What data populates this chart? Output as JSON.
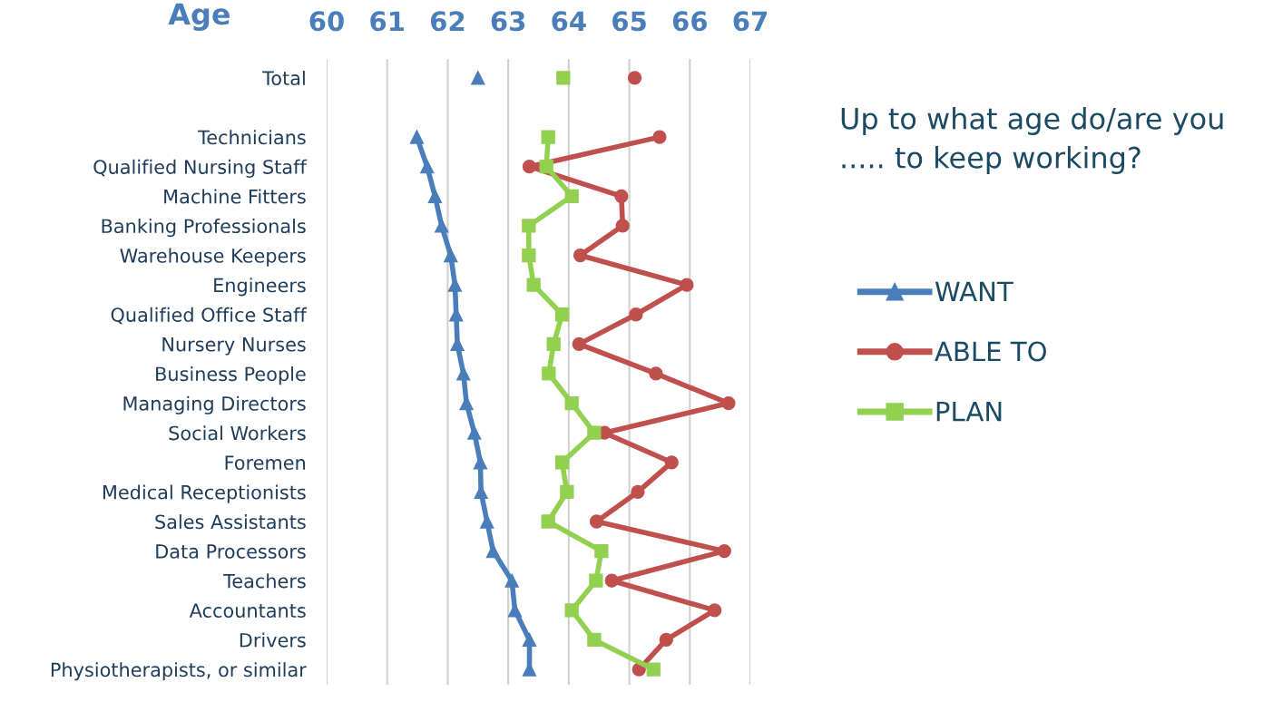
{
  "chart_data": {
    "type": "line",
    "orientation": "horizontal",
    "title": "Up to what age do/are you ..... to keep working?",
    "xlabel": "Age",
    "categories": [
      "Total",
      null,
      "Technicians",
      "Qualified Nursing Staff",
      "Machine Fitters",
      "Banking Professionals",
      "Warehouse Keepers",
      "Engineers",
      "Qualified Office Staff",
      "Nursery Nurses",
      "Business People",
      "Managing Directors",
      "Social Workers",
      "Foremen",
      "Medical Receptionists",
      "Sales Assistants",
      "Data Processors",
      "Teachers",
      "Accountants",
      "Drivers",
      "Physiotherapists, or similar"
    ],
    "xlim": [
      60,
      67
    ],
    "xticks": [
      60,
      61,
      62,
      63,
      64,
      65,
      66,
      67
    ],
    "grid": "x",
    "legend": "right",
    "series": [
      {
        "name": "WANT",
        "color": "#4a7ebb",
        "marker": "triangle",
        "values": [
          62.5,
          null,
          61.49,
          61.66,
          61.79,
          61.9,
          62.05,
          62.12,
          62.14,
          62.16,
          62.26,
          62.31,
          62.44,
          62.54,
          62.55,
          62.65,
          62.75,
          63.06,
          63.11,
          63.35,
          63.35
        ]
      },
      {
        "name": "ABLE TO",
        "color": "#c0504d",
        "marker": "circle",
        "values": [
          65.09,
          null,
          65.5,
          63.35,
          64.87,
          64.89,
          64.19,
          65.95,
          65.11,
          64.17,
          65.44,
          66.64,
          64.59,
          65.7,
          65.14,
          64.46,
          66.57,
          64.71,
          66.41,
          65.61,
          65.16
        ]
      },
      {
        "name": "PLAN",
        "color": "#92d050",
        "marker": "square",
        "values": [
          63.91,
          null,
          63.66,
          63.63,
          64.05,
          63.34,
          63.34,
          63.42,
          63.89,
          63.75,
          63.67,
          64.05,
          64.42,
          63.89,
          63.97,
          63.66,
          64.54,
          64.45,
          64.05,
          64.42,
          65.4
        ]
      }
    ]
  }
}
